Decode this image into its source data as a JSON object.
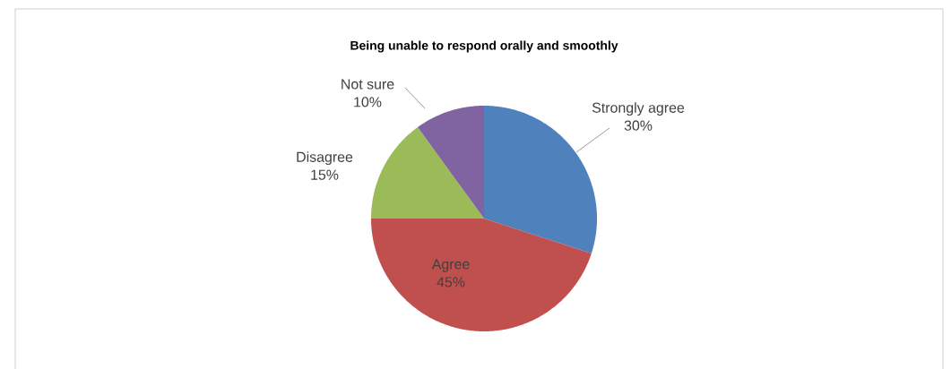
{
  "chart_data": {
    "type": "pie",
    "title": "Being unable to respond orally and smoothly",
    "categories": [
      "Strongly agree",
      "Agree",
      "Disagree",
      "Not sure"
    ],
    "values": [
      30,
      45,
      15,
      10
    ],
    "value_labels": [
      "30%",
      "45%",
      "15%",
      "10%"
    ],
    "colors": [
      "#4f81bd",
      "#c0504d",
      "#9bbb59",
      "#8064a2"
    ]
  }
}
